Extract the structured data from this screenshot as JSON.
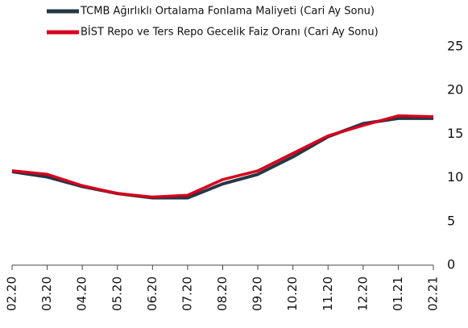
{
  "chart_data": {
    "type": "line",
    "categories": [
      "02.20",
      "03.20",
      "04.20",
      "05.20",
      "06.20",
      "07.20",
      "08.20",
      "09.20",
      "10.20",
      "11.20",
      "12.20",
      "01.21",
      "02.21"
    ],
    "series": [
      {
        "name": "TCMB Ağırlıklı Ortalama Fonlama Maliyeti (Cari Ay Sonu)",
        "color": "#253746",
        "values": [
          10.7,
          10.1,
          9.0,
          8.2,
          7.7,
          7.7,
          9.3,
          10.4,
          12.4,
          14.7,
          16.2,
          16.8,
          16.8
        ]
      },
      {
        "name": "BİST Repo ve Ters Repo Gecelik Faiz Oranı (Cari Ay Sonu)",
        "color": "#d5001c",
        "values": [
          10.8,
          10.4,
          9.1,
          8.2,
          7.8,
          8.0,
          9.8,
          10.8,
          12.8,
          14.8,
          16.0,
          17.1,
          17.0
        ]
      }
    ],
    "ylim": [
      0,
      25
    ],
    "yticks": [
      0,
      5,
      10,
      15,
      20,
      25
    ],
    "y_axis_side": "right"
  }
}
